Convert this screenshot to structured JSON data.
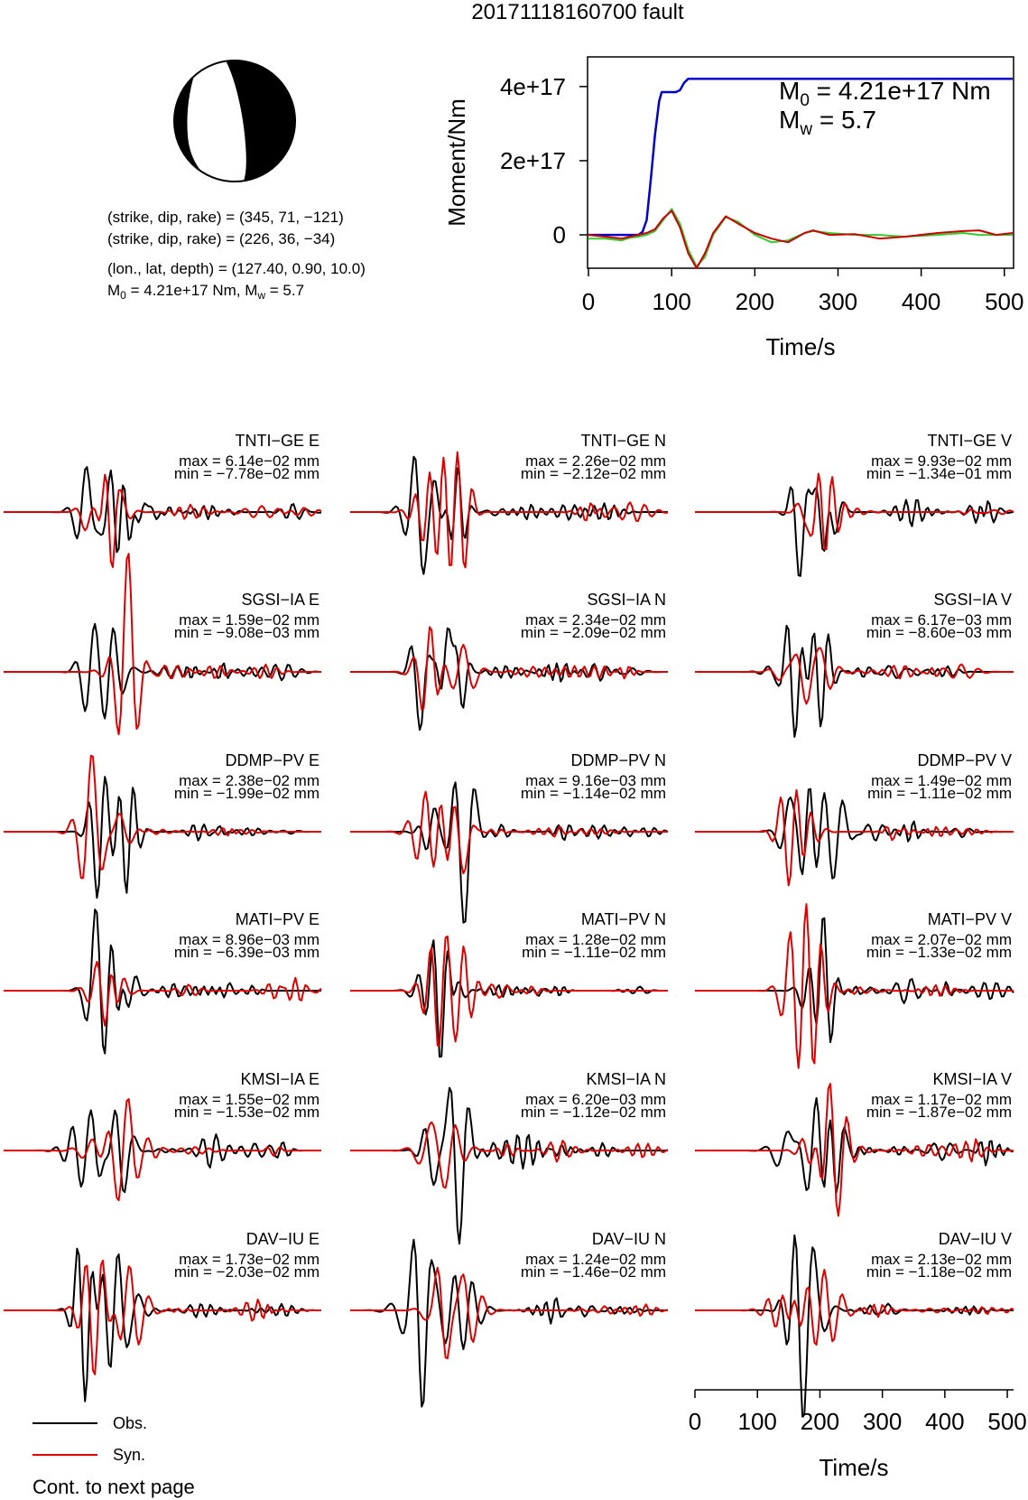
{
  "title": "20171118160700 fault",
  "mechanism": {
    "plane1": "(strike, dip, rake) = (345, 71, −121)",
    "plane2": "(strike, dip, rake) = (226, 36, −34)",
    "location": "(lon., lat, depth) = (127.40, 0.90, 10.0)",
    "moment_prefix": "M",
    "moment_sub": "0",
    "moment_mid": " = 4.21e+17 Nm, M",
    "mw_sub": "w",
    "mw_suffix": " = 5.7"
  },
  "moment_panel": {
    "m0_letter": "M",
    "m0_sub": "0",
    "m0_value": " = 4.21e+17 Nm",
    "mw_letter": "M",
    "mw_sub": "w",
    "mw_value": " = 5.7"
  },
  "legend": {
    "obs": "Obs.",
    "syn": "Syn.",
    "note": "Cont. to next page"
  },
  "colors": {
    "observed": "#000000",
    "synthetic": "#dd0000",
    "cumulative_moment": "#0000cc",
    "moment_rate_green": "#33cc33",
    "moment_rate_red": "#cc0000"
  },
  "chart_data": [
    {
      "type": "line",
      "ylabel": "Moment/Nm",
      "xlabel": "Time/s",
      "xlim": [
        0,
        510
      ],
      "ylim": [
        -9e+16,
        4.8e+17
      ],
      "xticks": [
        0,
        100,
        200,
        300,
        400,
        500
      ],
      "yticks": [
        0,
        2e+17,
        4e+17
      ],
      "ytick_labels": [
        "0",
        "2e+17",
        "4e+17"
      ],
      "series": [
        {
          "values_x": [
            0,
            40,
            60,
            65,
            70,
            75,
            80,
            85,
            88,
            90,
            95,
            100,
            105,
            110,
            115,
            120,
            125,
            510
          ],
          "values_y": [
            0,
            0,
            0,
            8000000000000000.0,
            4e+16,
            1.5e+17,
            2.7e+17,
            3.6e+17,
            3.85e+17,
            3.85e+17,
            3.85e+17,
            3.85e+17,
            3.85e+17,
            3.9e+17,
            4.1e+17,
            4.21e+17,
            4.21e+17,
            4.21e+17
          ]
        },
        {
          "values_x": [
            0,
            20,
            40,
            50,
            60,
            70,
            80,
            90,
            100,
            110,
            120,
            130,
            140,
            150,
            165,
            180,
            200,
            220,
            240,
            260,
            270,
            290,
            320,
            350,
            380,
            420,
            450,
            470,
            490,
            510
          ],
          "values_y": [
            -1e+16,
            -1e+16,
            -1.5e+16,
            -8000000000000000.0,
            -5000000000000000.0,
            0,
            1e+16,
            4e+16,
            7e+16,
            3e+16,
            -4e+16,
            -8.5e+16,
            -6e+16,
            0,
            4.8e+16,
            3.5e+16,
            0,
            -2e+16,
            -1.5e+16,
            5000000000000000.0,
            1e+16,
            5000000000000000.0,
            0,
            0,
            -5000000000000000.0,
            0,
            5000000000000000.0,
            0,
            0,
            0
          ]
        },
        {
          "values_x": [
            0,
            20,
            40,
            50,
            60,
            70,
            80,
            90,
            100,
            110,
            120,
            130,
            140,
            150,
            165,
            180,
            200,
            220,
            240,
            260,
            270,
            290,
            320,
            350,
            380,
            420,
            450,
            470,
            490,
            510
          ],
          "values_y": [
            0,
            -5000000000000000.0,
            -1e+16,
            -5000000000000000.0,
            0,
            5000000000000000.0,
            1.5e+16,
            4.5e+16,
            6.5e+16,
            2e+16,
            -5e+16,
            -9e+16,
            -5e+16,
            5000000000000000.0,
            5e+16,
            3e+16,
            5000000000000000.0,
            -1e+16,
            -2e+16,
            5000000000000000.0,
            1.2e+16,
            0,
            2000000000000000.0,
            -1e+16,
            -5000000000000000.0,
            5000000000000000.0,
            1e+16,
            1.2e+16,
            0,
            5000000000000000.0
          ]
        }
      ]
    },
    {
      "type": "line",
      "xlabel": "Time/s",
      "xlim": [
        0,
        510
      ],
      "xticks": [
        0,
        100,
        200,
        300,
        400,
        500
      ],
      "stations": [
        {
          "label": "TNTI−GE E",
          "max": "max = 6.14e−02 mm",
          "min": "min = −7.78e−02 mm"
        },
        {
          "label": "TNTI−GE N",
          "max": "max = 2.26e−02 mm",
          "min": "min = −2.12e−02 mm"
        },
        {
          "label": "TNTI−GE V",
          "max": "max = 9.93e−02 mm",
          "min": "min = −1.34e−01 mm"
        },
        {
          "label": "SGSI−IA E",
          "max": "max = 1.59e−02 mm",
          "min": "min = −9.08e−03 mm"
        },
        {
          "label": "SGSI−IA N",
          "max": "max = 2.34e−02 mm",
          "min": "min = −2.09e−02 mm"
        },
        {
          "label": "SGSI−IA V",
          "max": "max = 6.17e−03 mm",
          "min": "min = −8.60e−03 mm"
        },
        {
          "label": "DDMP−PV E",
          "max": "max = 2.38e−02 mm",
          "min": "min = −1.99e−02 mm"
        },
        {
          "label": "DDMP−PV N",
          "max": "max = 9.16e−03 mm",
          "min": "min = −1.14e−02 mm"
        },
        {
          "label": "DDMP−PV V",
          "max": "max = 1.49e−02 mm",
          "min": "min = −1.11e−02 mm"
        },
        {
          "label": "MATI−PV E",
          "max": "max = 8.96e−03 mm",
          "min": "min = −6.39e−03 mm"
        },
        {
          "label": "MATI−PV N",
          "max": "max = 1.28e−02 mm",
          "min": "min = −1.11e−02 mm"
        },
        {
          "label": "MATI−PV V",
          "max": "max = 2.07e−02 mm",
          "min": "min = −1.33e−02 mm"
        },
        {
          "label": "KMSI−IA E",
          "max": "max = 1.55e−02 mm",
          "min": "min = −1.53e−02 mm"
        },
        {
          "label": "KMSI−IA N",
          "max": "max = 6.20e−03 mm",
          "min": "min = −1.12e−02 mm"
        },
        {
          "label": "KMSI−IA V",
          "max": "max = 1.17e−02 mm",
          "min": "min = −1.87e−02 mm"
        },
        {
          "label": "DAV−IU E",
          "max": "max = 1.73e−02 mm",
          "min": "min = −2.03e−02 mm"
        },
        {
          "label": "DAV−IU N",
          "max": "max = 1.24e−02 mm",
          "min": "min = −1.46e−02 mm"
        },
        {
          "label": "DAV−IU V",
          "max": "max = 2.13e−02 mm",
          "min": "min = −1.18e−02 mm"
        }
      ]
    }
  ]
}
